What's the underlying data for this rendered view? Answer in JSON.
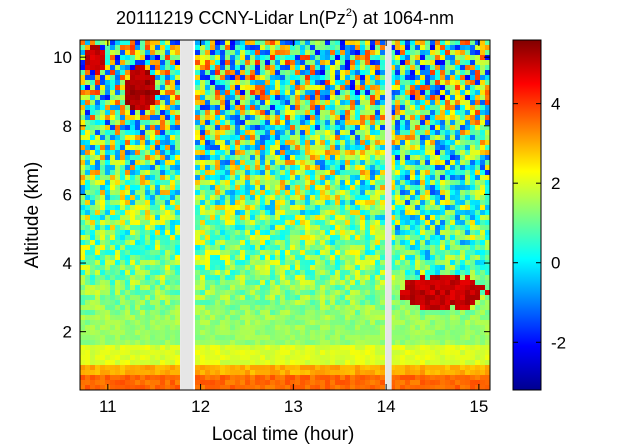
{
  "chart_data": {
    "type": "heatmap",
    "title": {
      "prefix": "20111219 CCNY-Lidar Ln(Pz",
      "superscript": "2",
      "suffix": ") at 1064-nm"
    },
    "xlabel": "Local time (hour)",
    "ylabel": "Altitude (km)",
    "xlim": [
      10.7,
      15.12
    ],
    "ylim": [
      0.3,
      10.5
    ],
    "xticks": [
      11,
      12,
      13,
      14,
      15
    ],
    "yticks": [
      2,
      4,
      6,
      8,
      10
    ],
    "colorbar": {
      "range": [
        -3.2,
        5.6
      ],
      "ticks": [
        -2,
        0,
        2,
        4
      ],
      "colormap": "jet"
    },
    "data_gaps": [
      {
        "start": 11.78,
        "end": 11.92
      },
      {
        "start": 13.99,
        "end": 14.06
      }
    ],
    "features": [
      {
        "kind": "cirrus",
        "time": [
          10.75,
          11.0
        ],
        "altitude": [
          9.5,
          10.4
        ],
        "value": 5.0
      },
      {
        "kind": "cirrus",
        "time": [
          11.15,
          11.55
        ],
        "altitude": [
          8.3,
          9.8
        ],
        "value": 5.2
      },
      {
        "kind": "cloud-layer",
        "time": [
          14.1,
          15.1
        ],
        "altitude": [
          2.6,
          3.7
        ],
        "value": 5.0
      },
      {
        "kind": "boundary-layer",
        "time": [
          10.7,
          15.12
        ],
        "altitude": [
          0.3,
          1.1
        ],
        "value": 3.2
      }
    ]
  }
}
